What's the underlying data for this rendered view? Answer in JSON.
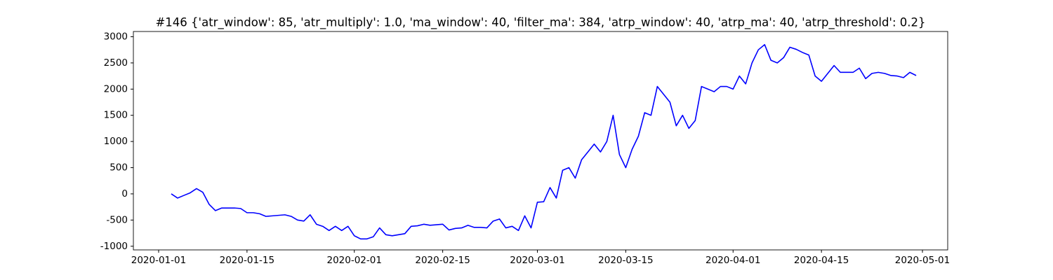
{
  "chart_data": {
    "type": "line",
    "title": "#146 {'atr_window': 85, 'atr_multiply': 1.0, 'ma_window': 40, 'filter_ma': 384, 'atrp_window': 40, 'atrp_ma': 40, 'atrp_threshold': 0.2}",
    "x": [
      "2020-01-03",
      "2020-01-04",
      "2020-01-05",
      "2020-01-06",
      "2020-01-07",
      "2020-01-08",
      "2020-01-09",
      "2020-01-10",
      "2020-01-11",
      "2020-01-12",
      "2020-01-13",
      "2020-01-14",
      "2020-01-15",
      "2020-01-16",
      "2020-01-17",
      "2020-01-18",
      "2020-01-19",
      "2020-01-20",
      "2020-01-21",
      "2020-01-22",
      "2020-01-23",
      "2020-01-24",
      "2020-01-25",
      "2020-01-26",
      "2020-01-27",
      "2020-01-28",
      "2020-01-29",
      "2020-01-30",
      "2020-01-31",
      "2020-02-01",
      "2020-02-02",
      "2020-02-03",
      "2020-02-04",
      "2020-02-05",
      "2020-02-06",
      "2020-02-07",
      "2020-02-08",
      "2020-02-09",
      "2020-02-10",
      "2020-02-11",
      "2020-02-12",
      "2020-02-13",
      "2020-02-14",
      "2020-02-15",
      "2020-02-16",
      "2020-02-17",
      "2020-02-18",
      "2020-02-19",
      "2020-02-20",
      "2020-02-21",
      "2020-02-22",
      "2020-02-23",
      "2020-02-24",
      "2020-02-25",
      "2020-02-26",
      "2020-02-27",
      "2020-02-28",
      "2020-02-29",
      "2020-03-01",
      "2020-03-02",
      "2020-03-03",
      "2020-03-04",
      "2020-03-05",
      "2020-03-06",
      "2020-03-07",
      "2020-03-08",
      "2020-03-09",
      "2020-03-10",
      "2020-03-11",
      "2020-03-12",
      "2020-03-13",
      "2020-03-14",
      "2020-03-15",
      "2020-03-16",
      "2020-03-17",
      "2020-03-18",
      "2020-03-19",
      "2020-03-20",
      "2020-03-21",
      "2020-03-22",
      "2020-03-23",
      "2020-03-24",
      "2020-03-25",
      "2020-03-26",
      "2020-03-27",
      "2020-03-28",
      "2020-03-29",
      "2020-03-30",
      "2020-03-31",
      "2020-04-01",
      "2020-04-02",
      "2020-04-03",
      "2020-04-04",
      "2020-04-05",
      "2020-04-06",
      "2020-04-07",
      "2020-04-08",
      "2020-04-09",
      "2020-04-10",
      "2020-04-11",
      "2020-04-12",
      "2020-04-13",
      "2020-04-14",
      "2020-04-15",
      "2020-04-16",
      "2020-04-17",
      "2020-04-18",
      "2020-04-19",
      "2020-04-20",
      "2020-04-21",
      "2020-04-22",
      "2020-04-23",
      "2020-04-24",
      "2020-04-25",
      "2020-04-26",
      "2020-04-27",
      "2020-04-28",
      "2020-04-29",
      "2020-04-30"
    ],
    "series": [
      {
        "color": "#0000ff",
        "values": [
          0,
          -80,
          -30,
          20,
          100,
          30,
          -200,
          -320,
          -270,
          -270,
          -270,
          -280,
          -360,
          -360,
          -380,
          -430,
          -420,
          -410,
          -400,
          -430,
          -500,
          -520,
          -400,
          -580,
          -620,
          -700,
          -620,
          -700,
          -620,
          -800,
          -860,
          -860,
          -820,
          -650,
          -780,
          -800,
          -780,
          -760,
          -620,
          -610,
          -580,
          -600,
          -590,
          -580,
          -690,
          -660,
          -650,
          -600,
          -640,
          -640,
          -650,
          -520,
          -480,
          -650,
          -620,
          -700,
          -420,
          -650,
          -160,
          -150,
          120,
          -80,
          450,
          500,
          300,
          650,
          800,
          950,
          800,
          1000,
          1500,
          750,
          500,
          850,
          1100,
          1550,
          1500,
          2050,
          1900,
          1750,
          1300,
          1500,
          1250,
          1400,
          2050,
          2000,
          1950,
          2050,
          2050,
          2000,
          2250,
          2100,
          2500,
          2750,
          2850,
          2550,
          2500,
          2600,
          2800,
          2760,
          2700,
          2650,
          2250,
          2150,
          2300,
          2450,
          2320,
          2320,
          2320,
          2400,
          2200,
          2300,
          2320,
          2300,
          2260,
          2250,
          2220,
          2320,
          2260
        ]
      }
    ],
    "xlim": [
      "2019-12-28",
      "2020-05-05"
    ],
    "xticks": [
      "2020-01-01",
      "2020-01-15",
      "2020-02-01",
      "2020-02-15",
      "2020-03-01",
      "2020-03-15",
      "2020-04-01",
      "2020-04-15",
      "2020-05-01"
    ],
    "ylim": [
      -1070,
      3100
    ],
    "yticks": [
      -1000,
      -500,
      0,
      500,
      1000,
      1500,
      2000,
      2500,
      3000
    ]
  }
}
